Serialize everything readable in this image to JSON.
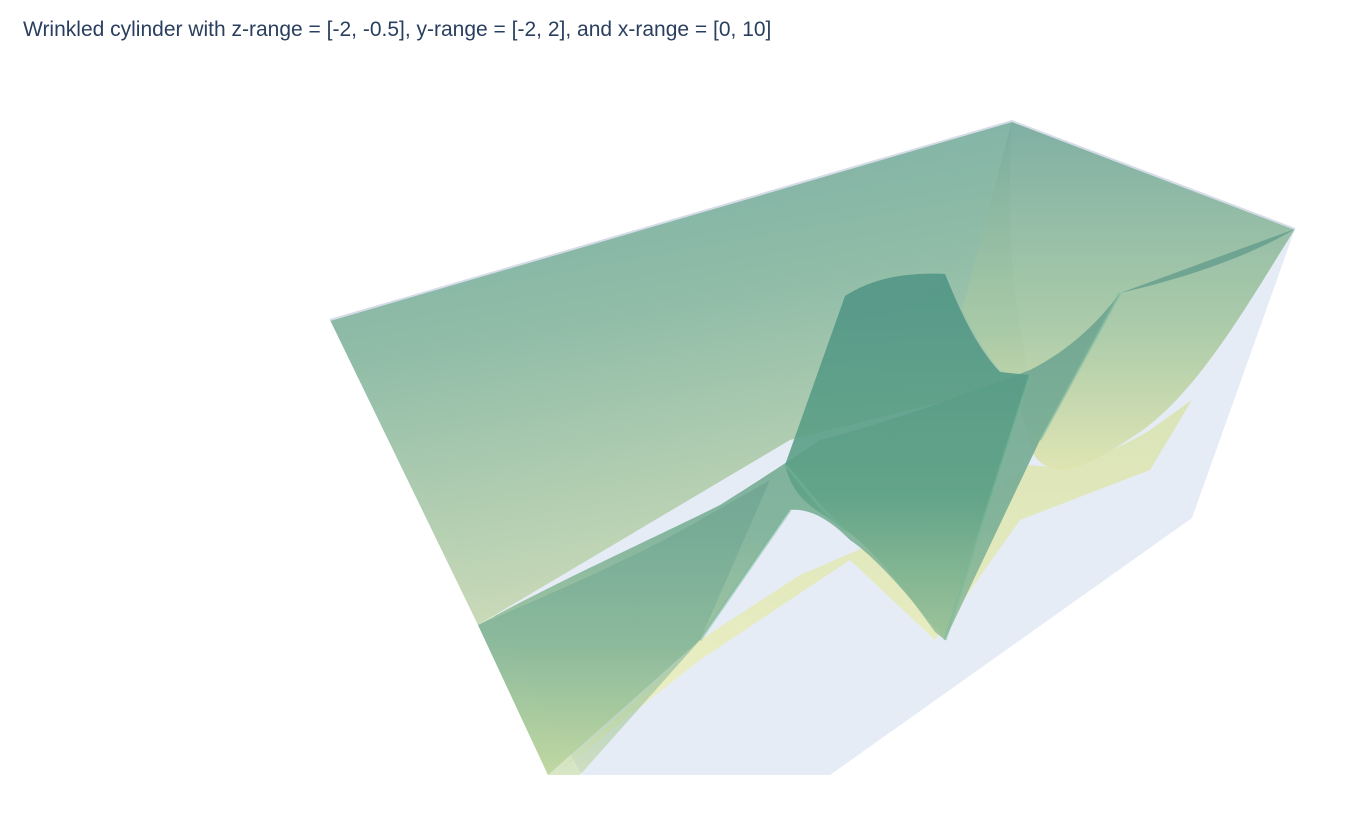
{
  "chart_data": {
    "type": "surface",
    "title": "Wrinkled cylinder with z-range = [-2, -0.5], y-range = [-2, 2], and x-range = [0, 10]",
    "xlim": [
      0,
      10
    ],
    "ylim": [
      -2,
      2
    ],
    "zlim": [
      -2,
      -0.5
    ],
    "grid": false,
    "show_axes": false,
    "colorscale": [
      "#f2eeb8",
      "#c0d9a8",
      "#8fbfa2",
      "#5f9e8c"
    ],
    "scene_bgcolor": "#e5ecf6",
    "opacity": 0.85
  }
}
